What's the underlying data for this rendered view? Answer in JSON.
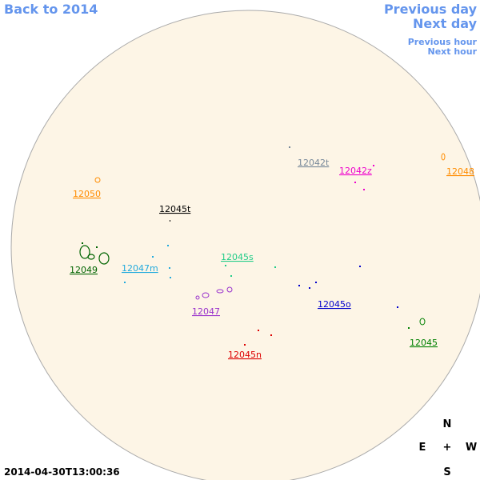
{
  "navigation": {
    "back": "Back to 2014",
    "previous_day": "Previous day",
    "next_day": "Next day",
    "previous_hour": "Previous hour",
    "next_hour": "Next hour"
  },
  "regions": [
    {
      "label": "12042t",
      "color": "#778899"
    },
    {
      "label": "12042z",
      "color": "#ee00cc"
    },
    {
      "label": "12048",
      "color": "#ff8c00"
    },
    {
      "label": "12050",
      "color": "#ff8c00"
    },
    {
      "label": "12045t",
      "color": "#000000"
    },
    {
      "label": "12045s",
      "color": "#22cc88"
    },
    {
      "label": "12047m",
      "color": "#22aadd"
    },
    {
      "label": "12049",
      "color": "#006400"
    },
    {
      "label": "12045o",
      "color": "#0000cc"
    },
    {
      "label": "12047",
      "color": "#9932cc"
    },
    {
      "label": "12045",
      "color": "#008000"
    },
    {
      "label": "12045n",
      "color": "#dd0000"
    }
  ],
  "timestamp": "2014-04-30T13:00:36",
  "compass": {
    "north": "N",
    "east": "E",
    "center": "+",
    "west": "W",
    "south": "S"
  }
}
